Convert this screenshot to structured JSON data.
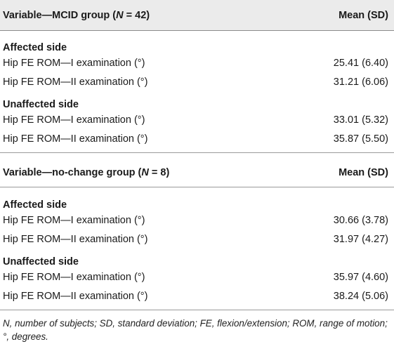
{
  "table": {
    "group_a": {
      "header_left": "Variable—MCID group (N = 42)",
      "header_right": "Mean (SD)",
      "sections": [
        {
          "title": "Affected side",
          "rows": [
            {
              "label": "Hip FE ROM—I examination (°)",
              "value": "25.41 (6.40)"
            },
            {
              "label": "Hip FE ROM—II examination (°)",
              "value": "31.21 (6.06)"
            }
          ]
        },
        {
          "title": "Unaffected side",
          "rows": [
            {
              "label": "Hip FE ROM—I examination (°)",
              "value": "33.01 (5.32)"
            },
            {
              "label": "Hip FE ROM—II examination (°)",
              "value": "35.87 (5.50)"
            }
          ]
        }
      ]
    },
    "group_b": {
      "header_left": "Variable—no-change group (N = 8)",
      "header_right": "Mean (SD)",
      "sections": [
        {
          "title": "Affected side",
          "rows": [
            {
              "label": "Hip FE ROM—I examination (°)",
              "value": "30.66 (3.78)"
            },
            {
              "label": "Hip FE ROM—II examination (°)",
              "value": "31.97 (4.27)"
            }
          ]
        },
        {
          "title": "Unaffected side",
          "rows": [
            {
              "label": "Hip FE ROM—I examination (°)",
              "value": "35.97 (4.60)"
            },
            {
              "label": "Hip FE ROM—II examination (°)",
              "value": "38.24 (5.06)"
            }
          ]
        }
      ]
    },
    "footnote": "N, number of subjects; SD, standard deviation; FE, flexion/extension; ROM, range of motion; °, degrees."
  },
  "colors": {
    "header_bg": "#ebebeb",
    "rule": "#9a9a9a",
    "text": "#1a1a1a"
  }
}
